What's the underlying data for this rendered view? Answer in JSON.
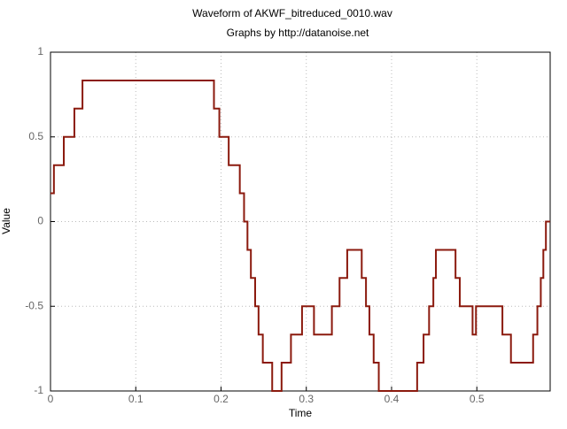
{
  "chart_data": {
    "type": "line",
    "title": "Waveform of AKWF_bitreduced_0010.wav",
    "subtitle": "Graphs by http://datanoise.net",
    "x_label": "Time",
    "y_label": "Value",
    "color": "#8b1a0e",
    "grid": true,
    "xlim": [
      0,
      0.586
    ],
    "ylim": [
      -1,
      1
    ],
    "xticks": [
      0,
      0.1,
      0.2,
      0.3,
      0.4,
      0.5
    ],
    "yticks": [
      -1,
      -0.5,
      0,
      0.5,
      1
    ],
    "x": [
      0,
      0.004,
      0.004,
      0.0156,
      0.0156,
      0.028,
      0.028,
      0.0375,
      0.0375,
      0.1917,
      0.1917,
      0.198,
      0.198,
      0.209,
      0.209,
      0.222,
      0.222,
      0.227,
      0.227,
      0.231,
      0.231,
      0.235,
      0.235,
      0.24,
      0.24,
      0.244,
      0.244,
      0.249,
      0.249,
      0.26,
      0.26,
      0.271,
      0.271,
      0.282,
      0.282,
      0.295,
      0.295,
      0.309,
      0.309,
      0.33,
      0.33,
      0.339,
      0.339,
      0.348,
      0.348,
      0.365,
      0.365,
      0.37,
      0.37,
      0.374,
      0.374,
      0.379,
      0.379,
      0.385,
      0.385,
      0.43,
      0.43,
      0.4375,
      0.4375,
      0.444,
      0.444,
      0.449,
      0.449,
      0.452,
      0.452,
      0.475,
      0.475,
      0.48,
      0.48,
      0.495,
      0.495,
      0.499,
      0.499,
      0.53,
      0.53,
      0.54,
      0.54,
      0.566,
      0.566,
      0.571,
      0.571,
      0.575,
      0.575,
      0.578,
      0.578,
      0.581,
      0.581,
      0.586
    ],
    "values": [
      0.167,
      0.167,
      0.333,
      0.333,
      0.5,
      0.5,
      0.667,
      0.667,
      0.833,
      0.833,
      0.667,
      0.667,
      0.5,
      0.5,
      0.333,
      0.333,
      0.167,
      0.167,
      0,
      0,
      -0.167,
      -0.167,
      -0.333,
      -0.333,
      -0.5,
      -0.5,
      -0.667,
      -0.667,
      -0.833,
      -0.833,
      -1,
      -1,
      -0.833,
      -0.833,
      -0.667,
      -0.667,
      -0.5,
      -0.5,
      -0.667,
      -0.667,
      -0.5,
      -0.5,
      -0.333,
      -0.333,
      -0.167,
      -0.167,
      -0.333,
      -0.333,
      -0.5,
      -0.5,
      -0.667,
      -0.667,
      -0.833,
      -0.833,
      -1,
      -1,
      -0.833,
      -0.833,
      -0.667,
      -0.667,
      -0.5,
      -0.5,
      -0.333,
      -0.333,
      -0.167,
      -0.167,
      -0.333,
      -0.333,
      -0.5,
      -0.5,
      -0.667,
      -0.667,
      -0.5,
      -0.5,
      -0.667,
      -0.667,
      -0.833,
      -0.833,
      -0.667,
      -0.667,
      -0.5,
      -0.5,
      -0.333,
      -0.333,
      -0.167,
      -0.167,
      0,
      0
    ]
  }
}
